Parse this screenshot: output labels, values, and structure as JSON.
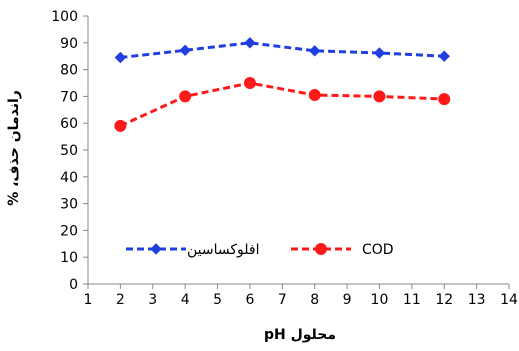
{
  "chart_data": {
    "type": "line",
    "xlabel": "محلول pH",
    "ylabel": "راندمان حذف، %",
    "xlim": [
      1,
      14
    ],
    "ylim": [
      0,
      100
    ],
    "x_ticks": [
      1,
      2,
      3,
      4,
      5,
      6,
      7,
      8,
      9,
      10,
      11,
      12,
      13,
      14
    ],
    "y_ticks": [
      0,
      10,
      20,
      30,
      40,
      50,
      60,
      70,
      80,
      90,
      100
    ],
    "grid": false,
    "legend_position": "bottom",
    "x": [
      2,
      4,
      6,
      8,
      10,
      12
    ],
    "series": [
      {
        "name": "افلوکساسین",
        "values": [
          84.5,
          87.2,
          90.0,
          87.0,
          86.2,
          85.0
        ],
        "color": "#1f3fe0",
        "marker": "diamond",
        "line_style": "dashed"
      },
      {
        "name": "COD",
        "values": [
          59.0,
          70.0,
          75.0,
          70.5,
          70.0,
          69.0
        ],
        "color": "#ff1a1a",
        "marker": "circle",
        "line_style": "dashed"
      }
    ]
  }
}
